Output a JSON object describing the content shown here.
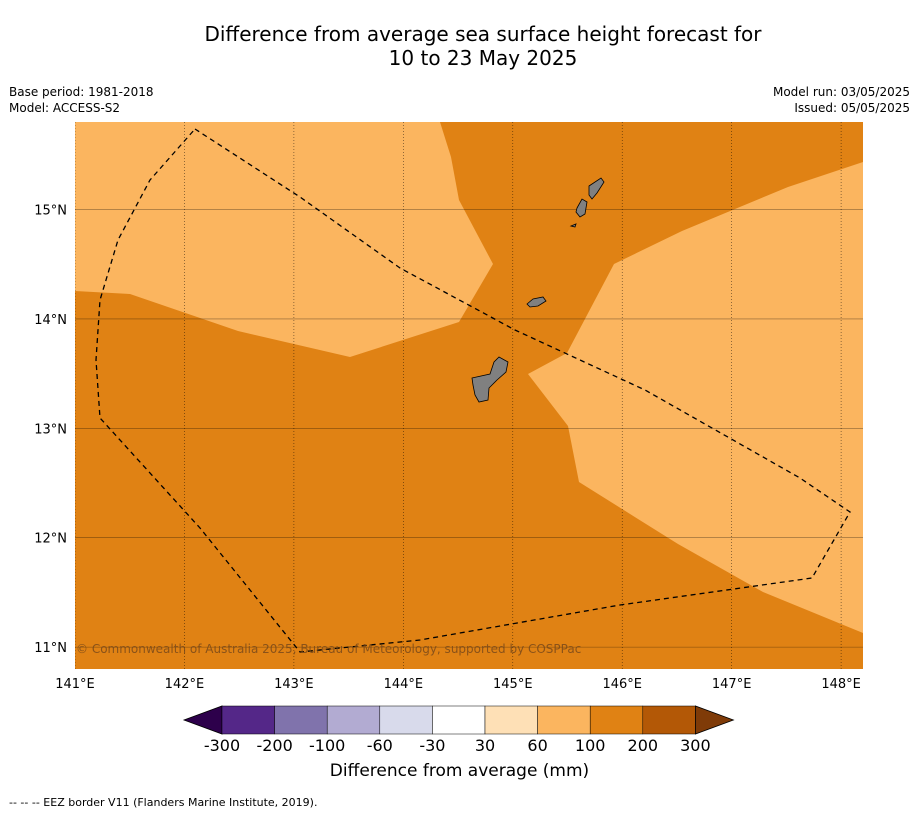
{
  "title_line1": "Difference from average sea surface height forecast for",
  "title_line2": "10 to 23 May 2025",
  "meta": {
    "base_period": "Base period: 1981-2018",
    "model": "Model: ACCESS-S2",
    "model_run": "Model run: 03/05/2025",
    "issued": "Issued: 05/05/2025"
  },
  "map": {
    "lon_range": [
      141.0,
      148.2
    ],
    "lat_range": [
      10.8,
      15.8
    ],
    "lon_ticks": [
      141,
      142,
      143,
      144,
      145,
      146,
      147,
      148
    ],
    "lat_ticks": [
      11,
      12,
      13,
      14,
      15
    ],
    "lon_labels": [
      "141°E",
      "142°E",
      "143°E",
      "144°E",
      "145°E",
      "146°E",
      "147°E",
      "148°E"
    ],
    "lat_labels": [
      "11°N",
      "12°N",
      "13°N",
      "14°N",
      "15°N"
    ],
    "background_color": "#e08214",
    "region_100_200_color": "#e08214",
    "region_60_100_color": "#fbb55f",
    "land_color": "#808080",
    "copyright": "© Commonwealth of Australia 2025, Bureau of Meteorology, supported by COSPPac"
  },
  "colorbar": {
    "colors": [
      "#2d004b",
      "#542788",
      "#8073ac",
      "#b2abd2",
      "#d8daeb",
      "#ffffff",
      "#fee0b6",
      "#fbb55f",
      "#e08214",
      "#b35806",
      "#7f3b08"
    ],
    "tick_labels": [
      "-300",
      "-200",
      "-100",
      "-60",
      "-30",
      "30",
      "60",
      "100",
      "200",
      "300"
    ],
    "title": "Difference from average (mm)"
  },
  "footer": "--  --  -- EEZ border V11 (Flanders Marine Institute, 2019)."
}
